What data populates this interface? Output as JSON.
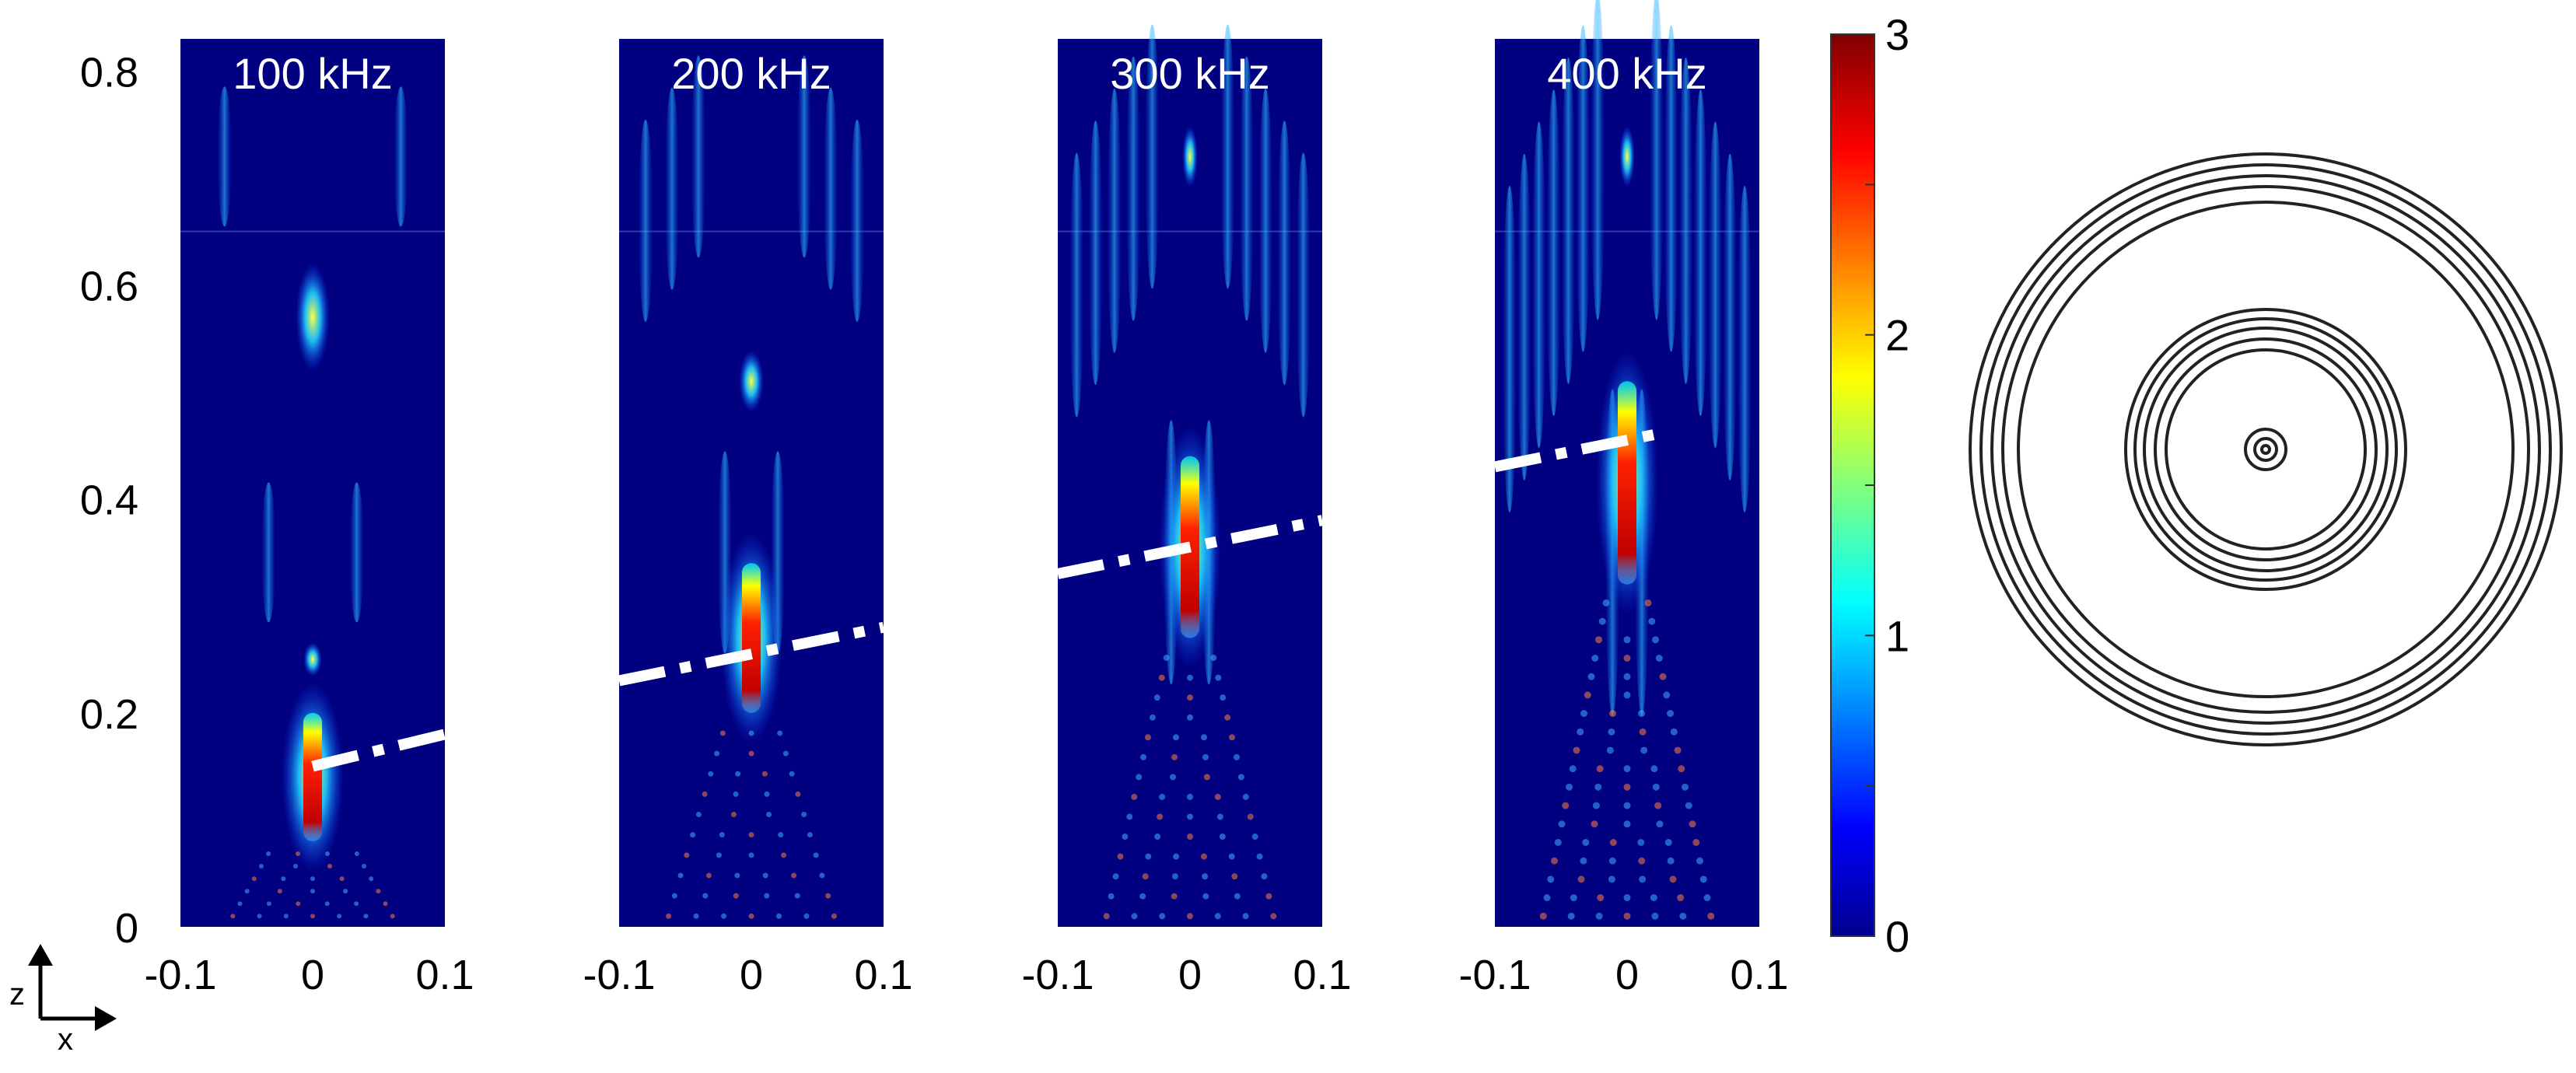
{
  "chart_data": {
    "type": "heatmap",
    "panels": [
      {
        "title": "100 kHz",
        "focus_z": [
          0.2,
          0.08
        ],
        "dash_line": {
          "x": [
            0.0,
            0.1
          ],
          "z": [
            0.15,
            0.18
          ]
        }
      },
      {
        "title": "200 kHz",
        "focus_z": [
          0.34,
          0.2
        ],
        "dash_line": {
          "x": [
            -0.1,
            0.1
          ],
          "z": [
            0.23,
            0.28
          ]
        }
      },
      {
        "title": "300 kHz",
        "focus_z": [
          0.44,
          0.27
        ],
        "dash_line": {
          "x": [
            -0.1,
            0.1
          ],
          "z": [
            0.33,
            0.38
          ]
        }
      },
      {
        "title": "400 kHz",
        "focus_z": [
          0.51,
          0.32
        ],
        "dash_line": {
          "x": [
            -0.1,
            0.02
          ],
          "z": [
            0.43,
            0.46
          ]
        }
      }
    ],
    "x_ticks": [
      "-0.1",
      "0",
      "0.1"
    ],
    "y_ticks": [
      "0",
      "0.2",
      "0.4",
      "0.6",
      "0.8"
    ],
    "xlim": [
      -0.1,
      0.1
    ],
    "ylim": [
      0,
      0.83
    ],
    "colorbar": {
      "min": 0,
      "max": 3,
      "ticks": [
        "0",
        "1",
        "2",
        "3"
      ],
      "colormap": "jet"
    },
    "axes_indicator": {
      "vertical": "z",
      "horizontal": "x"
    },
    "ring_count": 13
  },
  "colors": {
    "background": "#000080",
    "dash_line": "#ffffff",
    "rings": "#222222",
    "title_text": "#ffffff"
  }
}
